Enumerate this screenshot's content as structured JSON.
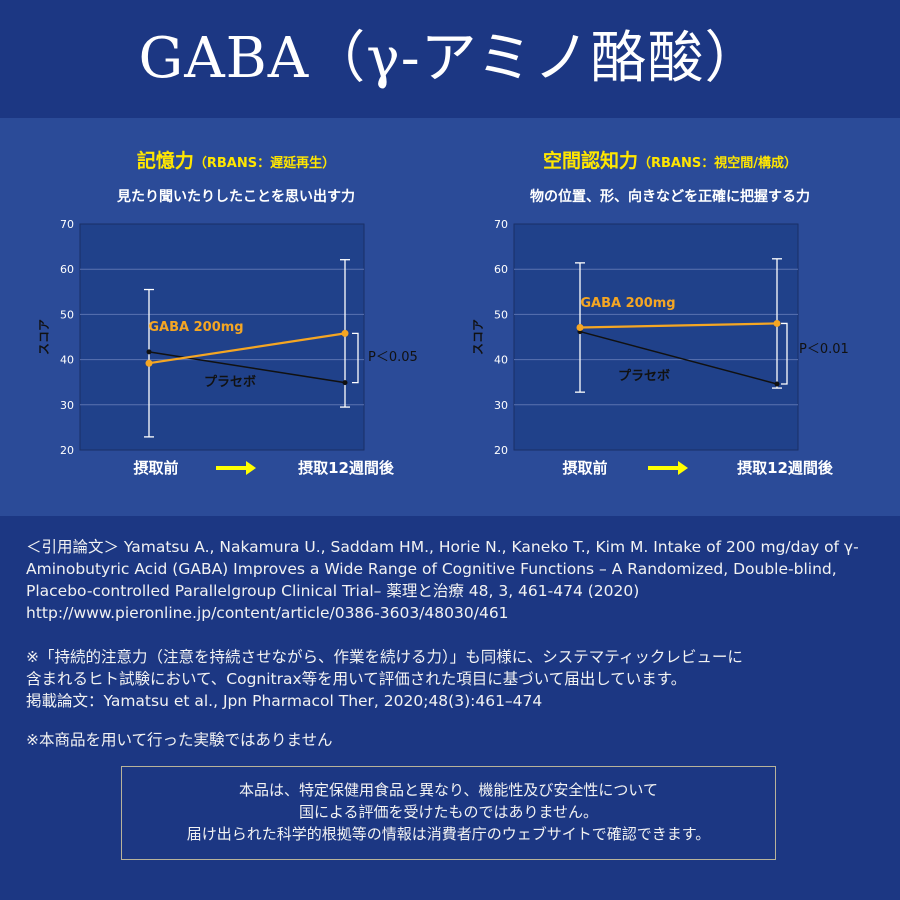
{
  "title": "GABA（γ-アミノ酪酸）",
  "axis_ylabel": "スコア",
  "arrow_color": "#ffff00",
  "colors": {
    "gaba": "#f5a623",
    "placebo": "#111111",
    "title_accent": "#ffe600"
  },
  "chart_data": [
    {
      "type": "line",
      "title": "記憶力",
      "title_sub": "（RBANS：遅延再生）",
      "subtitle": "見たり聞いたりしたことを思い出す力",
      "ylabel": "スコア",
      "ylim": [
        20,
        70
      ],
      "yticks": [
        "70",
        "60",
        "50",
        "40",
        "30",
        "20"
      ],
      "categories": [
        "摂取前",
        "摂取12週間後"
      ],
      "grid": true,
      "series": [
        {
          "name": "GABA 200mg",
          "values": [
            39.2,
            45.8
          ],
          "color": "#f5a623",
          "err": [
            16.3,
            16.3
          ]
        },
        {
          "name": "プラセボ",
          "values": [
            41.7,
            34.9
          ],
          "color": "#111111"
        }
      ],
      "annotation": "P＜0.05"
    },
    {
      "type": "line",
      "title": "空間認知力",
      "title_sub": "（RBANS：視空間/構成）",
      "subtitle": "物の位置、形、向きなどを正確に把握する力",
      "ylabel": "スコア",
      "ylim": [
        20,
        70
      ],
      "yticks": [
        "70",
        "60",
        "50",
        "40",
        "30",
        "20"
      ],
      "categories": [
        "摂取前",
        "摂取12週間後"
      ],
      "grid": true,
      "series": [
        {
          "name": "GABA 200mg",
          "values": [
            47.1,
            48.0
          ],
          "color": "#f5a623",
          "err": [
            14.3,
            14.3
          ]
        },
        {
          "name": "プラセボ",
          "values": [
            46.2,
            34.6
          ],
          "color": "#111111"
        }
      ],
      "annotation": "P＜0.01"
    }
  ],
  "citation": "＜引用論文＞ Yamatsu A., Nakamura U., Saddam HM., Horie N., Kaneko T., Kim M. Intake of 200 mg/day of γ-Aminobutyric Acid (GABA) Improves a Wide Range of Cognitive Functions – A Randomized, Double-blind, Placebo-controlled Parallelgroup Clinical Trial– 薬理と治療 48, 3, 461-474 (2020) http://www.pieronline.jp/content/article/0386-3603/48030/461",
  "note_lines": [
    "※「持続的注意力（注意を持続させながら、作業を続ける力）」も同様に、システマティックレビューに",
    "含まれるヒト試験において、Cognitrax等を用いて評価された項目に基づいて届出しています。",
    " 掲載論文：Yamatsu et al., Jpn Pharmacol Ther, 2020;48(3):461–474"
  ],
  "disclaimer": "※本商品を用いて行った実験ではありません",
  "notice_lines": [
    "本品は、特定保健用食品と異なり、機能性及び安全性について",
    "国による評価を受けたものではありません。",
    "届け出られた科学的根拠等の情報は消費者庁のウェブサイトで確認できます。"
  ]
}
